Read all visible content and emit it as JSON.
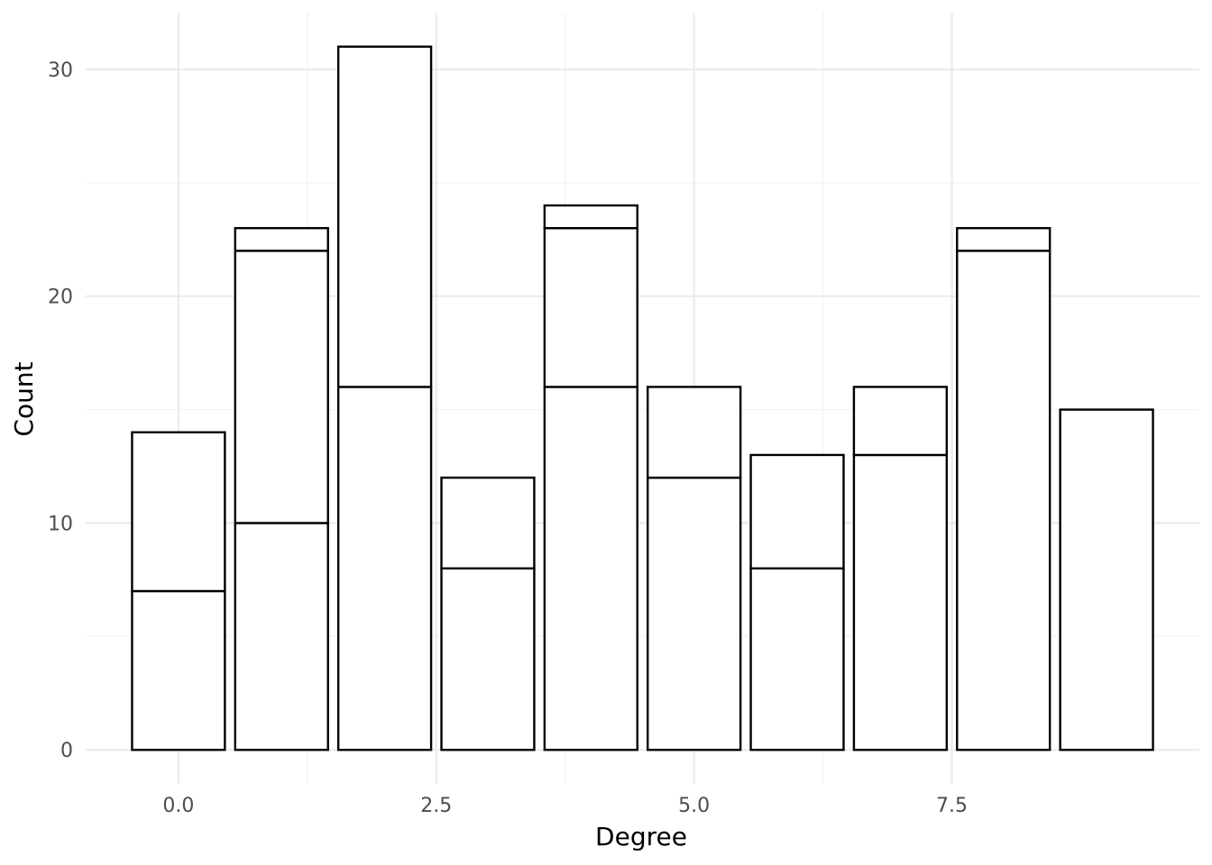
{
  "chart_data": {
    "type": "bar",
    "stacked": true,
    "xlabel": "Degree",
    "ylabel": "Count",
    "xlim": [
      -0.9,
      9.9
    ],
    "ylim": [
      -1.5,
      32.5
    ],
    "x_ticks": [
      {
        "value": 0,
        "label": "0.0"
      },
      {
        "value": 2.5,
        "label": "2.5"
      },
      {
        "value": 5,
        "label": "5.0"
      },
      {
        "value": 7.5,
        "label": "7.5"
      }
    ],
    "y_ticks": [
      {
        "value": 0,
        "label": "0"
      },
      {
        "value": 10,
        "label": "10"
      },
      {
        "value": 20,
        "label": "20"
      },
      {
        "value": 30,
        "label": "30"
      }
    ],
    "grid": true,
    "legend": "none",
    "bars": [
      {
        "x": 0,
        "total": 14,
        "boundaries": [
          7
        ]
      },
      {
        "x": 1,
        "total": 23,
        "boundaries": [
          10,
          22
        ]
      },
      {
        "x": 2,
        "total": 31,
        "boundaries": [
          16
        ]
      },
      {
        "x": 3,
        "total": 12,
        "boundaries": [
          8
        ]
      },
      {
        "x": 4,
        "total": 24,
        "boundaries": [
          16,
          23
        ]
      },
      {
        "x": 5,
        "total": 16,
        "boundaries": [
          12
        ]
      },
      {
        "x": 6,
        "total": 13,
        "boundaries": [
          8
        ]
      },
      {
        "x": 7,
        "total": 16,
        "boundaries": [
          13
        ]
      },
      {
        "x": 8,
        "total": 23,
        "boundaries": [
          22
        ]
      },
      {
        "x": 9,
        "total": 15,
        "boundaries": []
      }
    ],
    "bar_width": 0.9
  }
}
